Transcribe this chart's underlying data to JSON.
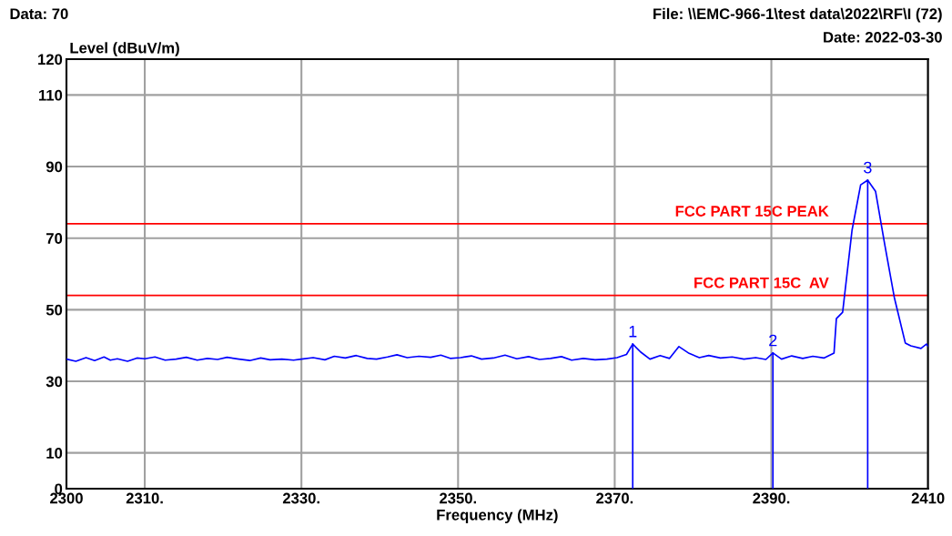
{
  "chart_data": {
    "type": "line",
    "title": "File: \\\\EMC-966-1\\test data\\2022\\RF\\I (72)",
    "xlabel": "Frequency (MHz)",
    "ylabel": "Level (dBuV/m)",
    "annotations": [
      "Data: 70",
      "Date: 2022-03-30",
      {
        "text": "1",
        "x": 2372.3,
        "y": 40.4
      },
      {
        "text": "2",
        "x": 2390.2,
        "y": 37.9
      },
      {
        "text": "3",
        "x": 2402.3,
        "y": 86.2
      }
    ],
    "series": [
      {
        "color": "#0000ff",
        "x": [
          2300,
          2301.2,
          2302.5,
          2303.6,
          2304.8,
          2305.6,
          2306.5,
          2307.8,
          2309,
          2310,
          2311.3,
          2312.6,
          2314,
          2315.3,
          2316.7,
          2318,
          2319.3,
          2320.5,
          2322,
          2323.4,
          2324.8,
          2326,
          2327.5,
          2329,
          2330,
          2331.5,
          2333,
          2334.2,
          2335.6,
          2337,
          2338.4,
          2339.6,
          2341,
          2342.2,
          2343.5,
          2345,
          2346.5,
          2347.8,
          2349,
          2350.3,
          2351.7,
          2353,
          2354.5,
          2356,
          2357.5,
          2359,
          2360.4,
          2361.8,
          2363.2,
          2364.5,
          2366,
          2367.5,
          2369,
          2370.3,
          2371.5,
          2372.3,
          2373.3,
          2374.5,
          2375.8,
          2377,
          2378.2,
          2379.5,
          2380.8,
          2382,
          2383.5,
          2385,
          2386.5,
          2388,
          2389.3,
          2390.2,
          2391.3,
          2392.6,
          2394,
          2395.3,
          2396.7,
          2398,
          2398.3,
          2399.1,
          2400.3,
          2401.4,
          2402.3,
          2403.3,
          2404.5,
          2405.7,
          2407.1,
          2407.8,
          2409.1,
          2409.8,
          2410
        ],
        "values": [
          36.2,
          35.6,
          36.6,
          35.8,
          36.8,
          35.9,
          36.3,
          35.6,
          36.5,
          36.3,
          36.8,
          35.9,
          36.2,
          36.7,
          35.9,
          36.4,
          36.1,
          36.7,
          36.2,
          35.8,
          36.5,
          36.0,
          36.2,
          35.9,
          36.2,
          36.6,
          36.0,
          37.0,
          36.5,
          37.2,
          36.4,
          36.2,
          36.8,
          37.4,
          36.6,
          37.0,
          36.7,
          37.3,
          36.4,
          36.6,
          37.1,
          36.2,
          36.5,
          37.3,
          36.3,
          36.9,
          36.1,
          36.4,
          36.9,
          35.9,
          36.4,
          36.0,
          36.2,
          36.6,
          37.5,
          40.4,
          38.2,
          36.2,
          37.2,
          36.4,
          39.7,
          37.8,
          36.6,
          37.2,
          36.5,
          36.8,
          36.2,
          36.6,
          36.1,
          37.9,
          36.2,
          37.1,
          36.4,
          37.0,
          36.5,
          37.9,
          47.5,
          49.3,
          72.2,
          84.9,
          86.2,
          83.1,
          67.9,
          53.4,
          40.7,
          39.9,
          39.2,
          40.4,
          39.8
        ]
      }
    ],
    "xlim": [
      2300,
      2410
    ],
    "ylim": [
      0,
      120
    ],
    "xticks": [
      2300,
      {
        "value": 2310,
        "label": "2310."
      },
      {
        "value": 2330,
        "label": "2330."
      },
      {
        "value": 2350,
        "label": "2350."
      },
      {
        "value": 2370,
        "label": "2370."
      },
      {
        "value": 2390,
        "label": "2390."
      },
      2410
    ],
    "yticks": [
      0,
      10,
      30,
      50,
      70,
      90,
      110,
      120
    ],
    "grid": true,
    "legend": false,
    "ref_lines": [
      {
        "axis": "y",
        "value": 74,
        "label": "FCC PART 15C PEAK",
        "color": "#ff0000"
      },
      {
        "axis": "y",
        "value": 54,
        "label": "FCC PART 15C  AV",
        "color": "#ff0000"
      }
    ]
  }
}
